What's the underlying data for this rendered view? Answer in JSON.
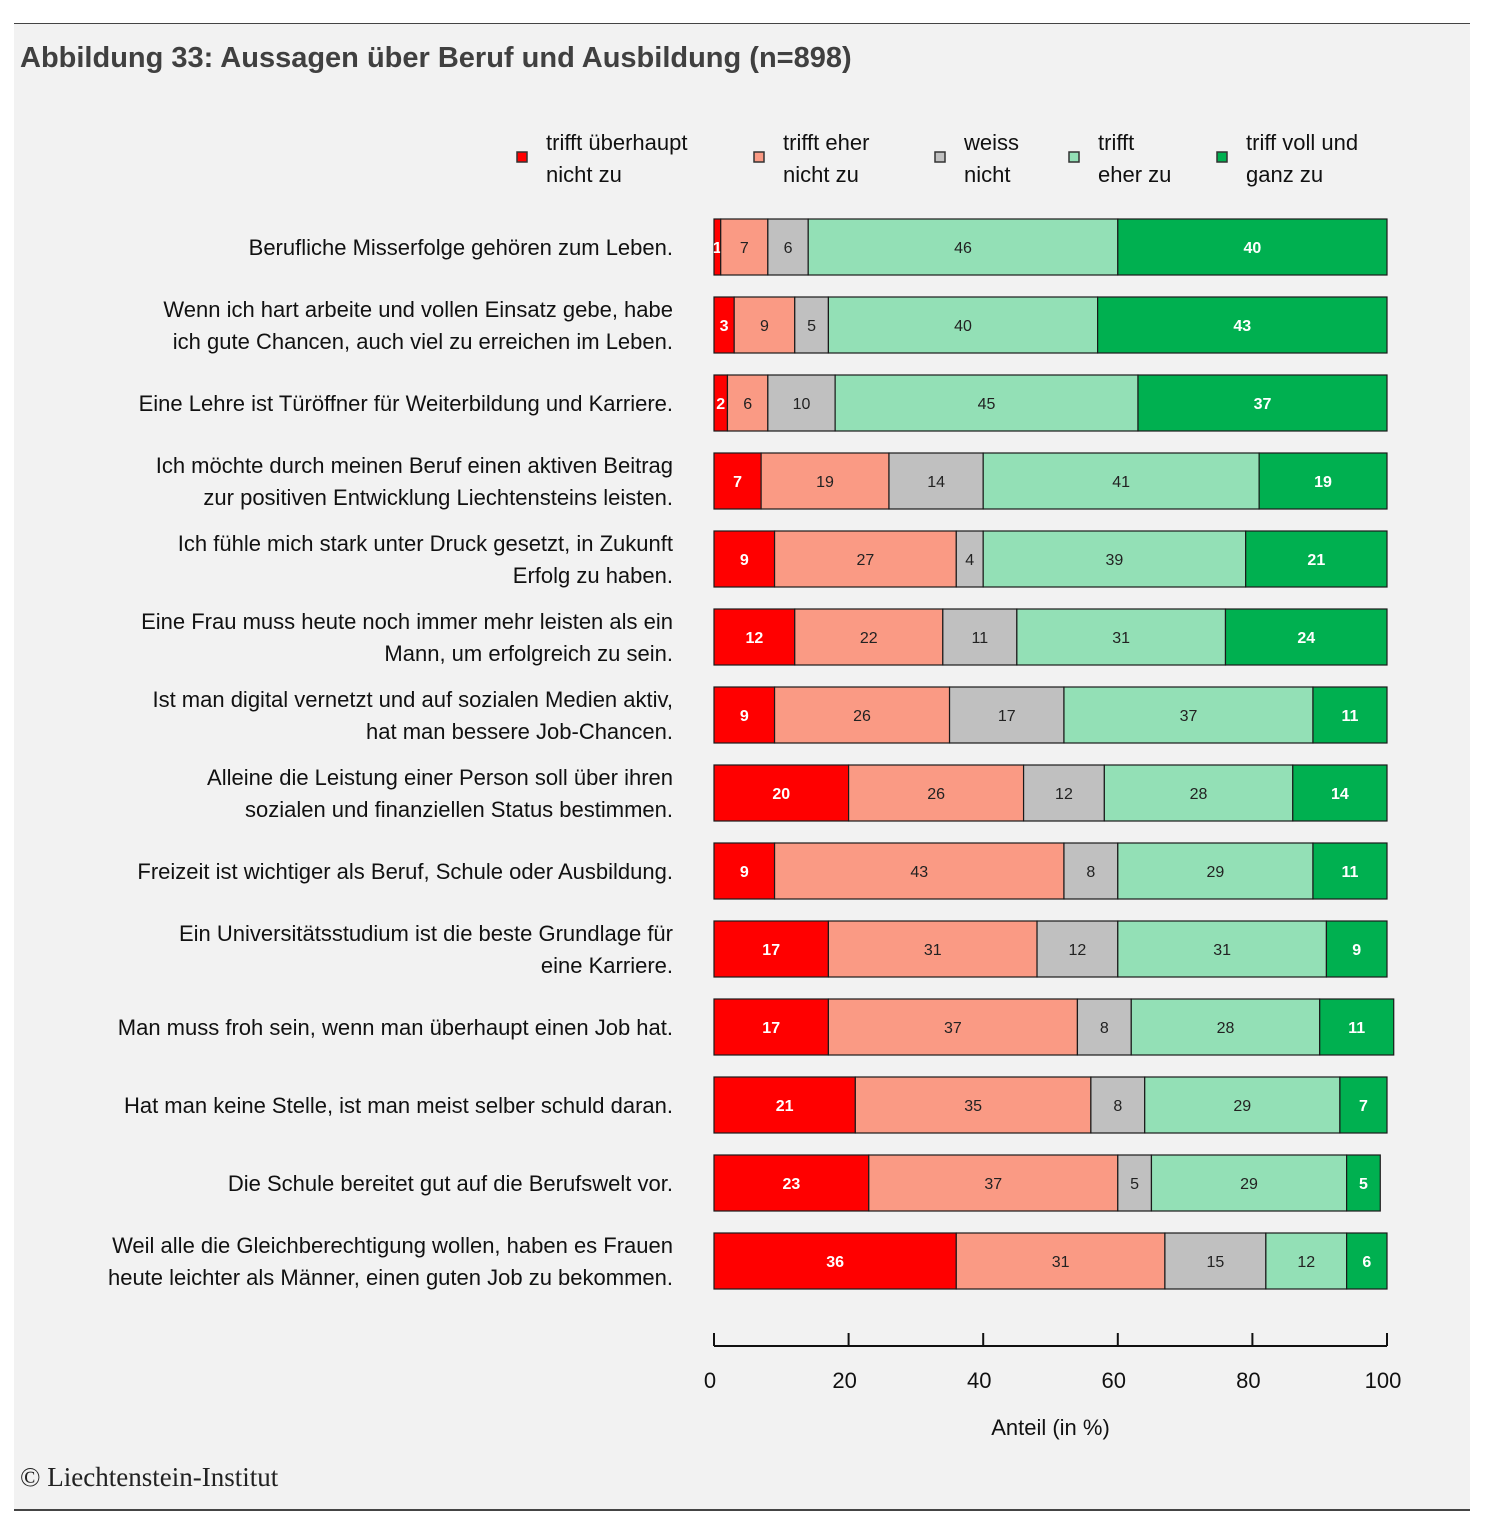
{
  "title": "Abbildung 33: Aussagen über Beruf und Ausbildung (n=898)",
  "copyright": "© Liechtenstein-Institut",
  "chart_data": {
    "type": "bar",
    "orientation": "horizontal-stacked-100",
    "xlabel": "Anteil (in %)",
    "xlim": [
      0,
      100
    ],
    "xticks": [
      0,
      20,
      40,
      60,
      80,
      100
    ],
    "legend_position": "top-right",
    "series": [
      {
        "name": [
          "trifft überhaupt",
          "nicht zu"
        ],
        "color": "#ff0000",
        "label_color": "#ffffff"
      },
      {
        "name": [
          "trifft eher",
          "nicht zu"
        ],
        "color": "#fa9a84",
        "label_color": "#222222"
      },
      {
        "name": [
          "weiss",
          "nicht"
        ],
        "color": "#c0c0c0",
        "label_color": "#222222"
      },
      {
        "name": [
          "trifft",
          "eher zu"
        ],
        "color": "#93e0b6",
        "label_color": "#222222"
      },
      {
        "name": [
          "triff voll und",
          "ganz zu"
        ],
        "color": "#00b050",
        "label_color": "#ffffff"
      }
    ],
    "categories": [
      [
        "Berufliche Misserfolge gehören zum Leben."
      ],
      [
        "Wenn ich hart arbeite und vollen Einsatz gebe, habe",
        "ich gute Chancen, auch viel zu erreichen im Leben."
      ],
      [
        "Eine Lehre ist Türöffner für Weiterbildung und Karriere."
      ],
      [
        "Ich möchte durch meinen Beruf einen aktiven Beitrag",
        "zur positiven Entwicklung Liechtensteins leisten."
      ],
      [
        "Ich fühle mich stark unter Druck gesetzt, in Zukunft",
        "Erfolg zu haben."
      ],
      [
        "Eine Frau muss heute noch immer mehr leisten als ein",
        "Mann, um erfolgreich zu sein."
      ],
      [
        "Ist man digital vernetzt und auf sozialen Medien aktiv,",
        "hat man bessere Job-Chancen."
      ],
      [
        "Alleine die Leistung einer Person soll über ihren",
        "sozialen und finanziellen Status bestimmen."
      ],
      [
        "Freizeit ist wichtiger als Beruf, Schule oder Ausbildung."
      ],
      [
        "Ein Universitätsstudium ist die beste Grundlage für",
        "eine Karriere."
      ],
      [
        "Man muss froh sein, wenn man überhaupt einen Job hat."
      ],
      [
        "Hat man keine Stelle, ist man meist selber schuld daran."
      ],
      [
        "Die Schule bereitet gut auf die Berufswelt vor."
      ],
      [
        "Weil alle die Gleichberechtigung wollen, haben es Frauen",
        "heute leichter als Männer, einen guten Job zu bekommen."
      ]
    ],
    "values": [
      [
        1,
        7,
        6,
        46,
        40
      ],
      [
        3,
        9,
        5,
        40,
        43
      ],
      [
        2,
        6,
        10,
        45,
        37
      ],
      [
        7,
        19,
        14,
        41,
        19
      ],
      [
        9,
        27,
        4,
        39,
        21
      ],
      [
        12,
        22,
        11,
        31,
        24
      ],
      [
        9,
        26,
        17,
        37,
        11
      ],
      [
        20,
        26,
        12,
        28,
        14
      ],
      [
        9,
        43,
        8,
        29,
        11
      ],
      [
        17,
        31,
        12,
        31,
        9
      ],
      [
        17,
        37,
        8,
        28,
        11
      ],
      [
        21,
        35,
        8,
        29,
        7
      ],
      [
        23,
        37,
        5,
        29,
        5
      ],
      [
        36,
        31,
        15,
        12,
        6
      ]
    ]
  }
}
